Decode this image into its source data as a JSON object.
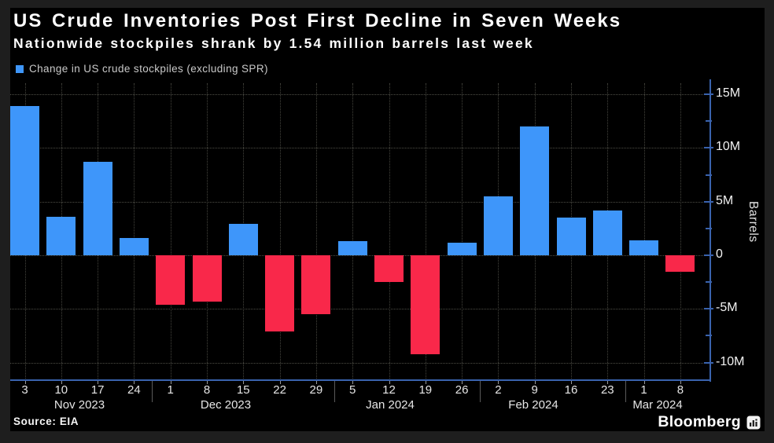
{
  "colors": {
    "positive": "#3E96FA",
    "negative": "#F9284A",
    "axis": "#3A63AE",
    "grid": "#4E4E46",
    "panel_bg": "#000000",
    "frame_bg": "#1E1E1E",
    "title_text": "#FFFFFF",
    "legend_text": "#C9C9C9",
    "tick_text": "#E6E6E6"
  },
  "footer": {
    "source": "Source: EIA",
    "brand": "Bloomberg"
  },
  "chart_data": {
    "type": "bar",
    "title": "US Crude Inventories Post First Decline in Seven Weeks",
    "subtitle": "Nationwide stockpiles shrank by 1.54 million barrels last week",
    "series_name": "Change in US crude stockpiles (excluding SPR)",
    "ylabel": "Barrels",
    "unit": "million barrels",
    "ylim": [
      -11.6,
      16
    ],
    "grid": true,
    "legend_position": "top-left",
    "yticks": [
      {
        "value": 15,
        "label": "15M"
      },
      {
        "value": 10,
        "label": "10M"
      },
      {
        "value": 5,
        "label": "5M"
      },
      {
        "value": 0,
        "label": "0"
      },
      {
        "value": -5,
        "label": "-5M"
      },
      {
        "value": -10,
        "label": "-10M"
      }
    ],
    "minor_tick_step": 2.5,
    "months": [
      "Nov 2023",
      "Dec 2023",
      "Jan 2024",
      "Feb 2024",
      "Mar 2024"
    ],
    "points": [
      {
        "month": "Nov 2023",
        "day": "3",
        "value": 13.9
      },
      {
        "month": "Nov 2023",
        "day": "10",
        "value": 3.6
      },
      {
        "month": "Nov 2023",
        "day": "17",
        "value": 8.7
      },
      {
        "month": "Nov 2023",
        "day": "24",
        "value": 1.6
      },
      {
        "month": "Dec 2023",
        "day": "1",
        "value": -4.6
      },
      {
        "month": "Dec 2023",
        "day": "8",
        "value": -4.3
      },
      {
        "month": "Dec 2023",
        "day": "15",
        "value": 2.9
      },
      {
        "month": "Dec 2023",
        "day": "22",
        "value": -7.1
      },
      {
        "month": "Dec 2023",
        "day": "29",
        "value": -5.5
      },
      {
        "month": "Jan 2024",
        "day": "5",
        "value": 1.3
      },
      {
        "month": "Jan 2024",
        "day": "12",
        "value": -2.5
      },
      {
        "month": "Jan 2024",
        "day": "19",
        "value": -9.2
      },
      {
        "month": "Jan 2024",
        "day": "26",
        "value": 1.2
      },
      {
        "month": "Feb 2024",
        "day": "2",
        "value": 5.5
      },
      {
        "month": "Feb 2024",
        "day": "9",
        "value": 12.0
      },
      {
        "month": "Feb 2024",
        "day": "16",
        "value": 3.5
      },
      {
        "month": "Feb 2024",
        "day": "23",
        "value": 4.2
      },
      {
        "month": "Mar 2024",
        "day": "1",
        "value": 1.4
      },
      {
        "month": "Mar 2024",
        "day": "8",
        "value": -1.54
      }
    ]
  }
}
